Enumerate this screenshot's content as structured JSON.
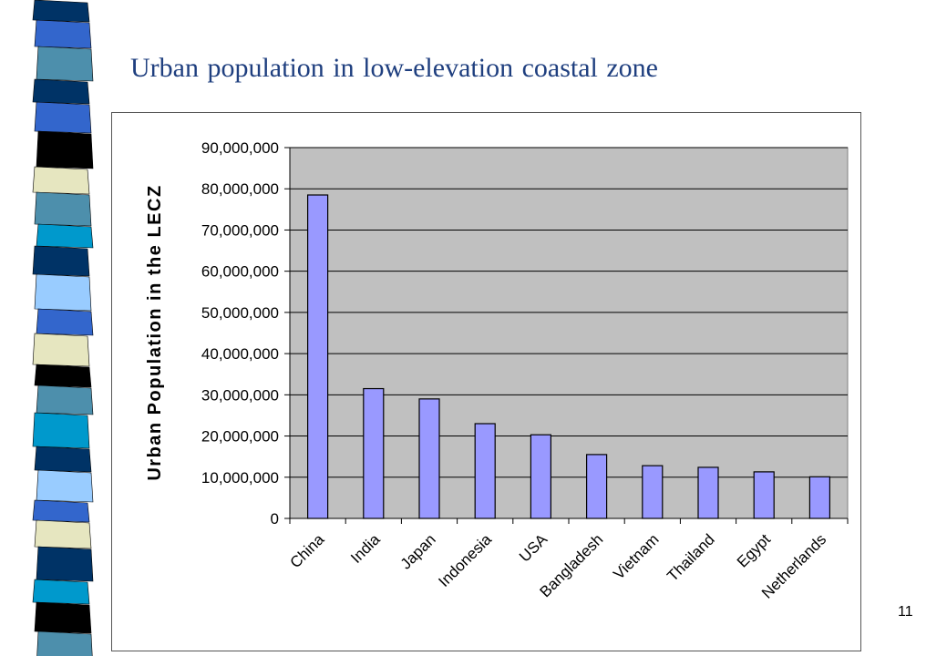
{
  "slide": {
    "title": "Urban population in low-elevation coastal zone",
    "page_number": "11"
  },
  "colors": {
    "title": "#1f3f7f",
    "plot_area": "#c0c0c0",
    "bar_fill": "#9999ff",
    "bar_stroke": "#000000",
    "stripe_palette": [
      "#003366",
      "#3366cc",
      "#4d8fac",
      "#99ccff",
      "#e6e6c0",
      "#000000",
      "#0099cc"
    ]
  },
  "chart_data": {
    "type": "bar",
    "title": "",
    "xlabel": "",
    "ylabel": "Urban Population in the LECZ",
    "categories": [
      "China",
      "India",
      "Japan",
      "Indonesia",
      "USA",
      "Bangladesh",
      "Vietnam",
      "Thailand",
      "Egypt",
      "Netherlands"
    ],
    "values": [
      78500000,
      31500000,
      29000000,
      23000000,
      20300000,
      15500000,
      12800000,
      12400000,
      11300000,
      10100000
    ],
    "ylim": [
      0,
      90000000
    ],
    "yticks": [
      0,
      10000000,
      20000000,
      30000000,
      40000000,
      50000000,
      60000000,
      70000000,
      80000000,
      90000000
    ],
    "ytick_labels": [
      "0",
      "10,000,000",
      "20,000,000",
      "30,000,000",
      "40,000,000",
      "50,000,000",
      "60,000,000",
      "70,000,000",
      "80,000,000",
      "90,000,000"
    ],
    "grid": true,
    "legend": "none"
  }
}
